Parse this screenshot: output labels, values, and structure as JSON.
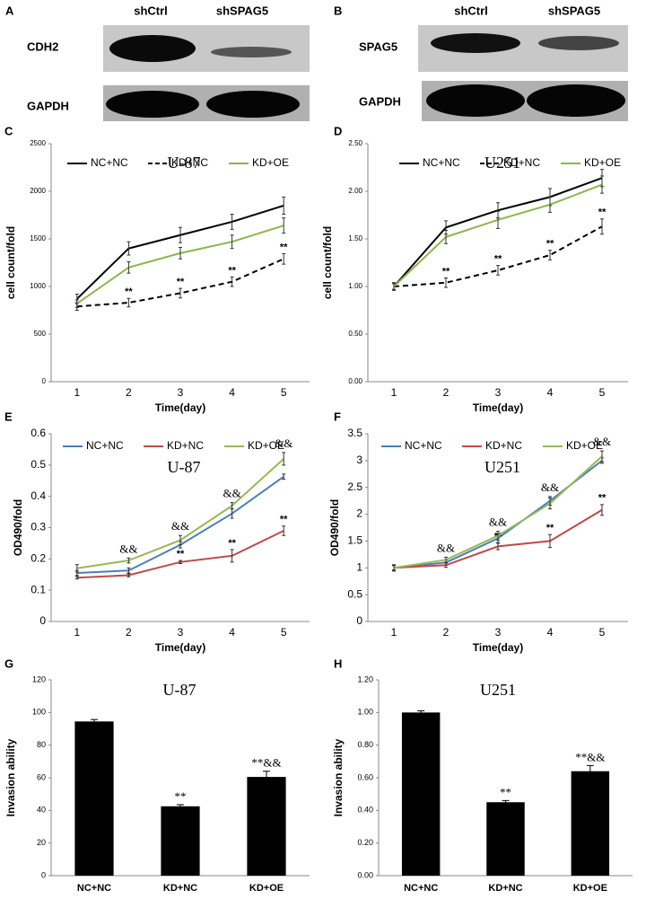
{
  "blots": [
    {
      "panel": "A",
      "lanes": [
        "shCtrl",
        "shSPAG5"
      ],
      "rows": [
        "CDH2",
        "GAPDH"
      ]
    },
    {
      "panel": "B",
      "lanes": [
        "shCtrl",
        "shSPAG5"
      ],
      "rows": [
        "SPAG5",
        "GAPDH"
      ]
    }
  ],
  "chart_data": [
    {
      "panel": "C",
      "type": "line",
      "title": "U-87",
      "xlabel": "Time(day)",
      "ylabel": "cell count/fold",
      "categories": [
        "1",
        "2",
        "3",
        "4",
        "5"
      ],
      "ylim": [
        0,
        2500
      ],
      "yticks": [
        0,
        500,
        1000,
        1500,
        2000,
        2500
      ],
      "series": [
        {
          "name": "NC+NC",
          "color": "#000000",
          "dash": false,
          "values": [
            870,
            1400,
            1540,
            1680,
            1850
          ],
          "errors": [
            50,
            70,
            80,
            80,
            90
          ]
        },
        {
          "name": "KD+NC",
          "color": "#000000",
          "dash": true,
          "values": [
            790,
            830,
            930,
            1050,
            1290
          ],
          "errors": [
            40,
            45,
            50,
            50,
            55
          ],
          "marks": [
            null,
            "**",
            "**",
            "**",
            "**"
          ]
        },
        {
          "name": "KD+OE",
          "color": "#8cb64b",
          "dash": false,
          "values": [
            820,
            1200,
            1350,
            1470,
            1640
          ],
          "errors": [
            40,
            60,
            60,
            70,
            80
          ]
        }
      ]
    },
    {
      "panel": "D",
      "type": "line",
      "title": "U251",
      "xlabel": "Time(day)",
      "ylabel": "cell count/fold",
      "categories": [
        "1",
        "2",
        "3",
        "4",
        "5"
      ],
      "ylim": [
        0,
        2.5
      ],
      "yticks": [
        {
          "value": 0,
          "label": "0.00"
        },
        {
          "value": 0.5,
          "label": "0.50"
        },
        {
          "value": 1,
          "label": "1.00"
        },
        {
          "value": 1.5,
          "label": "1.50"
        },
        {
          "value": 2,
          "label": "2.00"
        },
        {
          "value": 2.5,
          "label": "2.50"
        }
      ],
      "series": [
        {
          "name": "NC+NC",
          "color": "#000000",
          "dash": false,
          "values": [
            1.0,
            1.62,
            1.8,
            1.94,
            2.14
          ],
          "errors": [
            0.04,
            0.07,
            0.08,
            0.09,
            0.09
          ]
        },
        {
          "name": "KD+NC",
          "color": "#000000",
          "dash": true,
          "values": [
            1.0,
            1.04,
            1.17,
            1.33,
            1.63
          ],
          "errors": [
            0.03,
            0.05,
            0.05,
            0.05,
            0.08
          ],
          "marks": [
            null,
            "**",
            "**",
            "**",
            "**"
          ]
        },
        {
          "name": "KD+OE",
          "color": "#8cb64b",
          "dash": false,
          "values": [
            1.0,
            1.52,
            1.7,
            1.86,
            2.07
          ],
          "errors": [
            0.04,
            0.07,
            0.09,
            0.08,
            0.09
          ]
        }
      ]
    },
    {
      "panel": "E",
      "type": "line",
      "title": "U-87",
      "xlabel": "Time(day)",
      "ylabel": "OD490/fold",
      "categories": [
        "1",
        "2",
        "3",
        "4",
        "5"
      ],
      "ylim": [
        0,
        0.6
      ],
      "yticks": [
        0,
        0.1,
        0.2,
        0.3,
        0.4,
        0.5,
        0.6
      ],
      "top_labels": [
        null,
        "&&",
        "&&",
        "&&",
        "&&"
      ],
      "series": [
        {
          "name": "NC+NC",
          "color": "#4a7ebb",
          "dash": false,
          "values": [
            0.155,
            0.163,
            0.245,
            0.345,
            0.463
          ],
          "errors": [
            0.008,
            0.008,
            0.01,
            0.015,
            0.008
          ]
        },
        {
          "name": "KD+NC",
          "color": "#be4b48",
          "dash": false,
          "values": [
            0.14,
            0.148,
            0.19,
            0.21,
            0.29
          ],
          "errors": [
            0.004,
            0.005,
            0.005,
            0.02,
            0.015
          ],
          "marks": [
            null,
            null,
            "**",
            "**",
            "**"
          ]
        },
        {
          "name": "KD+OE",
          "color": "#98b954",
          "dash": false,
          "values": [
            0.17,
            0.195,
            0.26,
            0.37,
            0.52
          ],
          "errors": [
            0.012,
            0.008,
            0.015,
            0.01,
            0.02
          ]
        }
      ]
    },
    {
      "panel": "F",
      "type": "line",
      "title": "U251",
      "xlabel": "Time(day)",
      "ylabel": "OD490/fold",
      "categories": [
        "1",
        "2",
        "3",
        "4",
        "5"
      ],
      "ylim": [
        0,
        3.5
      ],
      "yticks": [
        0,
        0.5,
        1,
        1.5,
        2,
        2.5,
        3,
        3.5
      ],
      "top_labels": [
        null,
        "&&",
        "&&",
        "&&",
        "&&"
      ],
      "series": [
        {
          "name": "NC+NC",
          "color": "#4a7ebb",
          "dash": false,
          "values": [
            1.0,
            1.1,
            1.55,
            2.25,
            3.0
          ],
          "errors": [
            0.05,
            0.05,
            0.08,
            0.08,
            0.05
          ]
        },
        {
          "name": "KD+NC",
          "color": "#be4b48",
          "dash": false,
          "values": [
            1.0,
            1.05,
            1.4,
            1.5,
            2.08
          ],
          "errors": [
            0.04,
            0.04,
            0.06,
            0.12,
            0.1
          ],
          "marks": [
            null,
            null,
            "**",
            "**",
            "**"
          ]
        },
        {
          "name": "KD+OE",
          "color": "#98b954",
          "dash": false,
          "values": [
            1.0,
            1.15,
            1.6,
            2.2,
            3.08
          ],
          "errors": [
            0.06,
            0.05,
            0.08,
            0.1,
            0.1
          ]
        }
      ]
    },
    {
      "panel": "G",
      "type": "bar",
      "title": "U-87",
      "ylabel": "Invasion ability",
      "categories": [
        "NC+NC",
        "KD+NC",
        "KD+OE"
      ],
      "ylim": [
        0,
        120
      ],
      "yticks": [
        0,
        20,
        40,
        60,
        80,
        100,
        120
      ],
      "color": "#000000",
      "values": [
        94.5,
        42.5,
        60.5
      ],
      "errors": [
        1.2,
        1.0,
        3.5
      ],
      "bar_labels": [
        null,
        "**",
        "**&&"
      ]
    },
    {
      "panel": "H",
      "type": "bar",
      "title": "U251",
      "ylabel": "Invasion ability",
      "categories": [
        "NC+NC",
        "KD+NC",
        "KD+OE"
      ],
      "ylim": [
        0,
        1.2
      ],
      "yticks": [
        {
          "value": 0,
          "label": "0.00"
        },
        {
          "value": 0.2,
          "label": "0.20"
        },
        {
          "value": 0.4,
          "label": "0.40"
        },
        {
          "value": 0.6,
          "label": "0.60"
        },
        {
          "value": 0.8,
          "label": "0.80"
        },
        {
          "value": 1,
          "label": "1.00"
        },
        {
          "value": 1.2,
          "label": "1.20"
        }
      ],
      "color": "#000000",
      "values": [
        1.0,
        0.45,
        0.64
      ],
      "errors": [
        0.01,
        0.01,
        0.035
      ],
      "bar_labels": [
        null,
        "**",
        "**&&"
      ]
    }
  ]
}
